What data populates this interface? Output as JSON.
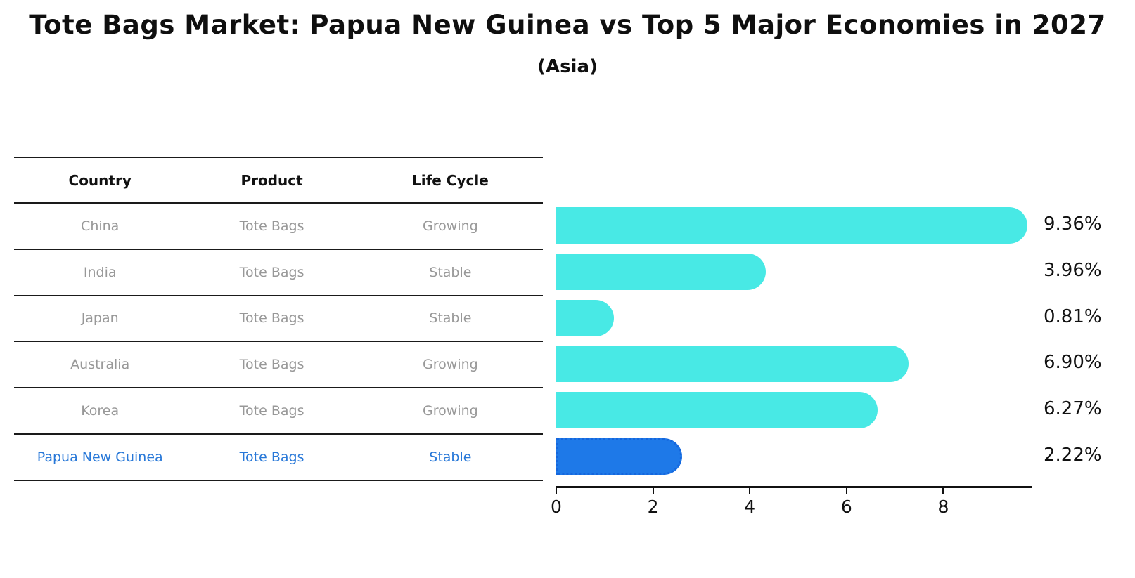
{
  "chart": {
    "title": "Tote Bags Market: Papua New Guinea vs Top 5 Major Economies in 2027",
    "subtitle": "(Asia)"
  },
  "table": {
    "headers": [
      "Country",
      "Product",
      "Life Cycle"
    ],
    "rows": [
      {
        "country": "China",
        "product": "Tote Bags",
        "life_cycle": "Growing",
        "highlight": false
      },
      {
        "country": "India",
        "product": "Tote Bags",
        "life_cycle": "Stable",
        "highlight": false
      },
      {
        "country": "Japan",
        "product": "Tote Bags",
        "life_cycle": "Stable",
        "highlight": false
      },
      {
        "country": "Australia",
        "product": "Tote Bags",
        "life_cycle": "Growing",
        "highlight": false
      },
      {
        "country": "Korea",
        "product": "Tote Bags",
        "life_cycle": "Growing",
        "highlight": false
      },
      {
        "country": "Papua New Guinea",
        "product": "Tote Bags",
        "life_cycle": "Stable",
        "highlight": true
      }
    ]
  },
  "chart_data": {
    "type": "bar",
    "orientation": "horizontal",
    "title": "Tote Bags Market: Papua New Guinea vs Top 5 Major Economies in 2027",
    "subtitle": "(Asia)",
    "categories": [
      "China",
      "India",
      "Japan",
      "Australia",
      "Korea",
      "Papua New Guinea"
    ],
    "values": [
      9.36,
      3.96,
      0.81,
      6.9,
      6.27,
      2.22
    ],
    "value_labels": [
      "9.36%",
      "3.96%",
      "0.81%",
      "6.90%",
      "6.27%",
      "2.22%"
    ],
    "highlight_index": 5,
    "xticks": [
      "0",
      "2",
      "4",
      "6",
      "8"
    ],
    "xtick_values": [
      0,
      2,
      4,
      6,
      8
    ],
    "xlim": [
      0,
      9.84
    ],
    "grid": false,
    "legend": false
  },
  "colors": {
    "bar": "#48e9e5",
    "highlight_bar": "#1e79e8",
    "highlight_border": "#1566dd",
    "highlight_text": "#2878d8",
    "table_text": "#989898",
    "axis": "#111111"
  }
}
